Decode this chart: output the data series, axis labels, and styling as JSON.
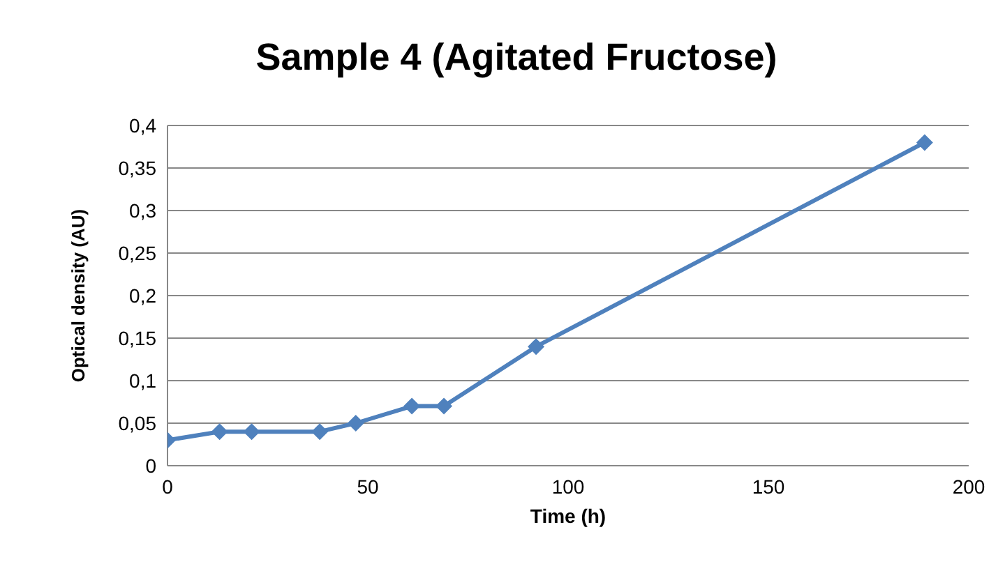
{
  "chart_data": {
    "type": "line",
    "title": "Sample 4 (Agitated Fructose)",
    "xlabel": "Time (h)",
    "ylabel": "Optical density (AU)",
    "x": [
      0,
      13,
      21,
      38,
      47,
      61,
      69,
      92,
      189
    ],
    "series": [
      {
        "color": "#4f81bd",
        "values": [
          0.03,
          0.04,
          0.04,
          0.04,
          0.05,
          0.07,
          0.07,
          0.14,
          0.38
        ]
      }
    ],
    "xlim": [
      0,
      200
    ],
    "xticks": [
      0,
      50,
      100,
      150,
      200
    ],
    "ylim": [
      0,
      0.4
    ],
    "yticks": [
      {
        "value": 0,
        "label": "0"
      },
      {
        "value": 0.05,
        "label": "0,05"
      },
      {
        "value": 0.1,
        "label": "0,1"
      },
      {
        "value": 0.15,
        "label": "0,15"
      },
      {
        "value": 0.2,
        "label": "0,2"
      },
      {
        "value": 0.25,
        "label": "0,25"
      },
      {
        "value": 0.3,
        "label": "0,3"
      },
      {
        "value": 0.35,
        "label": "0,35"
      },
      {
        "value": 0.4,
        "label": "0,4"
      }
    ],
    "grid": "y",
    "marker": "diamond",
    "line_style": "solid",
    "legend": false
  }
}
